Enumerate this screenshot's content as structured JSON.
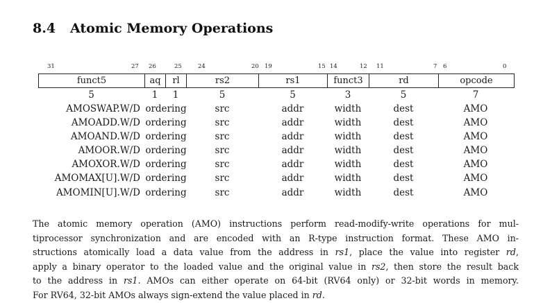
{
  "section": {
    "number": "8.4",
    "title": "Atomic Memory Operations"
  },
  "bit_labels": [
    "31",
    "27",
    "26",
    "25",
    "24",
    "20",
    "19",
    "15",
    "14",
    "12",
    "11",
    "7",
    "6",
    "0"
  ],
  "fields": [
    "funct5",
    "aq",
    "rl",
    "rs2",
    "rs1",
    "funct3",
    "rd",
    "opcode"
  ],
  "widths": [
    "5",
    "1",
    "1",
    "5",
    "5",
    "3",
    "5",
    "7"
  ],
  "instructions": [
    {
      "name": "AMOSWAP.W/D",
      "order": "ordering",
      "rs2": "src",
      "rs1": "addr",
      "funct3": "width",
      "rd": "dest",
      "opcode": "AMO"
    },
    {
      "name": "AMOADD.W/D",
      "order": "ordering",
      "rs2": "src",
      "rs1": "addr",
      "funct3": "width",
      "rd": "dest",
      "opcode": "AMO"
    },
    {
      "name": "AMOAND.W/D",
      "order": "ordering",
      "rs2": "src",
      "rs1": "addr",
      "funct3": "width",
      "rd": "dest",
      "opcode": "AMO"
    },
    {
      "name": "AMOOR.W/D",
      "order": "ordering",
      "rs2": "src",
      "rs1": "addr",
      "funct3": "width",
      "rd": "dest",
      "opcode": "AMO"
    },
    {
      "name": "AMOXOR.W/D",
      "order": "ordering",
      "rs2": "src",
      "rs1": "addr",
      "funct3": "width",
      "rd": "dest",
      "opcode": "AMO"
    },
    {
      "name": "AMOMAX[U].W/D",
      "order": "ordering",
      "rs2": "src",
      "rs1": "addr",
      "funct3": "width",
      "rd": "dest",
      "opcode": "AMO"
    },
    {
      "name": "AMOMIN[U].W/D",
      "order": "ordering",
      "rs2": "src",
      "rs1": "addr",
      "funct3": "width",
      "rd": "dest",
      "opcode": "AMO"
    }
  ],
  "paragraph": {
    "l1": "The atomic memory operation (AMO) instructions perform read-modify-write operations for mul-",
    "l2": "tiprocessor synchronization and are encoded with an R-type instruction format. These AMO in-",
    "l3a": "structions atomically load a data value from the address in ",
    "l3b": "rs1",
    "l3c": ", place the value into register ",
    "l3d": "rd",
    "l3e": ",",
    "l4a": "apply a binary operator to the loaded value and the original value in ",
    "l4b": "rs2",
    "l4c": ", then store the result back",
    "l5a": "to the address in ",
    "l5b": "rs1",
    "l5c": ". AMOs can either operate on 64-bit (RV64 only) or 32-bit words in memory.",
    "l6a": "For RV64, 32-bit AMOs always sign-extend the value placed in ",
    "l6b": "rd",
    "l6c": "."
  }
}
